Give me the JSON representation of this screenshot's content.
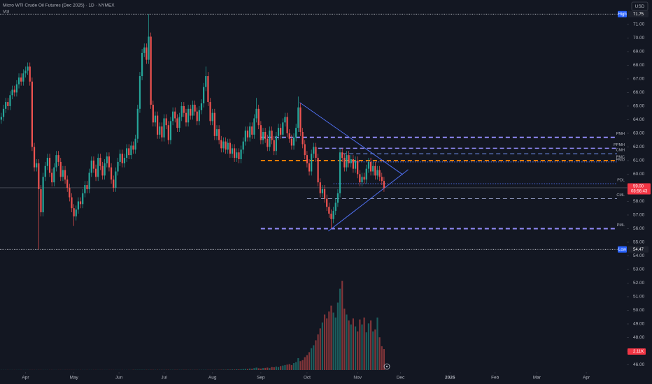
{
  "chart_data": {
    "type": "candlestick",
    "title": "Micro WTI Crude Oil Futures (Dec 2025) · 1D · NYMEX",
    "volume_title": "Vol",
    "currency": "USD",
    "up_color": "#26a69a",
    "down_color": "#ef5350",
    "xlim": [
      -0.6,
      284.4
    ],
    "xticks": [
      {
        "value": 11,
        "label": "Apr"
      },
      {
        "value": 33,
        "label": "May"
      },
      {
        "value": 53.5,
        "label": "Jun"
      },
      {
        "value": 74,
        "label": "Jul"
      },
      {
        "value": 96,
        "label": "Aug"
      },
      {
        "value": 118,
        "label": "Sep"
      },
      {
        "value": 139,
        "label": "Oct"
      },
      {
        "value": 162,
        "label": "Nov"
      },
      {
        "value": 181.5,
        "label": "Dec"
      },
      {
        "value": 204,
        "label": "2026"
      },
      {
        "value": 224.5,
        "label": "Feb"
      },
      {
        "value": 243.5,
        "label": "Mar"
      },
      {
        "value": 266,
        "label": "Apr"
      }
    ],
    "ylim": [
      44.59,
      72.79
    ],
    "yticks": [
      {
        "value": 46,
        "label": "46.00"
      },
      {
        "value": 47,
        "label": "47.00"
      },
      {
        "value": 48,
        "label": "48.00"
      },
      {
        "value": 49,
        "label": "49.00"
      },
      {
        "value": 50,
        "label": "50.00"
      },
      {
        "value": 51,
        "label": "51.00"
      },
      {
        "value": 52,
        "label": "52.00"
      },
      {
        "value": 53,
        "label": "53.00"
      },
      {
        "value": 54,
        "label": "54.00"
      },
      {
        "value": 55,
        "label": "55.00"
      },
      {
        "value": 56,
        "label": "56.00"
      },
      {
        "value": 57,
        "label": "57.00"
      },
      {
        "value": 58,
        "label": "58.00"
      },
      {
        "value": 59,
        "label": "59.00"
      },
      {
        "value": 60,
        "label": "60.00"
      },
      {
        "value": 61,
        "label": "61.00"
      },
      {
        "value": 62,
        "label": "62.00"
      },
      {
        "value": 63,
        "label": "63.00"
      },
      {
        "value": 64,
        "label": "64.00"
      },
      {
        "value": 65,
        "label": "65.00"
      },
      {
        "value": 66,
        "label": "66.00"
      },
      {
        "value": 67,
        "label": "67.00"
      },
      {
        "value": 68,
        "label": "68.00"
      },
      {
        "value": 69,
        "label": "69.00"
      },
      {
        "value": 70,
        "label": "70.00"
      },
      {
        "value": 71,
        "label": "71.00"
      }
    ],
    "high": {
      "label": "High",
      "value": 71.75
    },
    "low": {
      "label": "Low",
      "value": 54.47
    },
    "last_price_label": "59.00",
    "countdown": "08:56:43",
    "last_volume_label": "2.11K",
    "ohlc": [
      [
        64.0,
        64.5,
        63.7,
        64.2
      ],
      [
        64.2,
        65.1,
        63.9,
        64.8
      ],
      [
        64.8,
        65.6,
        64.5,
        65.3
      ],
      [
        65.3,
        65.6,
        64.7,
        65.0
      ],
      [
        65.0,
        66.1,
        64.7,
        65.8
      ],
      [
        65.8,
        66.5,
        65.5,
        66.2
      ],
      [
        66.2,
        66.5,
        65.7,
        66.0
      ],
      [
        66.0,
        66.9,
        65.7,
        66.6
      ],
      [
        66.6,
        67.4,
        66.3,
        67.1
      ],
      [
        67.1,
        67.4,
        66.5,
        66.8
      ],
      [
        66.8,
        67.7,
        66.5,
        67.4
      ],
      [
        67.4,
        67.9,
        67.1,
        67.6
      ],
      [
        67.6,
        68.2,
        67.3,
        67.9
      ],
      [
        67.9,
        68.2,
        66.5,
        66.8
      ],
      [
        66.8,
        67.1,
        61.7,
        62.0
      ],
      [
        62.0,
        62.3,
        60.2,
        60.5
      ],
      [
        60.5,
        61.1,
        60.2,
        60.8
      ],
      [
        60.8,
        61.1,
        54.47,
        58.9
      ],
      [
        58.9,
        59.2,
        56.9,
        57.2
      ],
      [
        57.2,
        60.1,
        56.9,
        59.8
      ],
      [
        59.8,
        60.9,
        59.5,
        60.6
      ],
      [
        60.6,
        61.5,
        60.3,
        61.2
      ],
      [
        61.2,
        61.5,
        59.8,
        60.1
      ],
      [
        60.1,
        60.4,
        59.1,
        59.4
      ],
      [
        59.4,
        60.8,
        59.1,
        60.5
      ],
      [
        60.5,
        61.7,
        60.2,
        61.4
      ],
      [
        61.4,
        61.7,
        60.6,
        60.9
      ],
      [
        60.9,
        61.2,
        59.5,
        59.8
      ],
      [
        59.8,
        60.6,
        59.5,
        60.3
      ],
      [
        60.3,
        60.6,
        59.3,
        59.6
      ],
      [
        59.6,
        59.9,
        58.7,
        59.0
      ],
      [
        59.0,
        59.3,
        58.0,
        58.3
      ],
      [
        58.3,
        58.6,
        57.2,
        57.5
      ],
      [
        57.5,
        57.8,
        56.2,
        56.9
      ],
      [
        56.9,
        57.7,
        56.6,
        57.4
      ],
      [
        57.4,
        58.3,
        57.1,
        58.0
      ],
      [
        58.0,
        58.3,
        57.5,
        57.8
      ],
      [
        57.8,
        58.9,
        57.5,
        58.6
      ],
      [
        58.6,
        59.5,
        58.3,
        59.2
      ],
      [
        59.2,
        59.5,
        58.6,
        58.9
      ],
      [
        58.9,
        60.4,
        58.6,
        60.1
      ],
      [
        60.1,
        61.3,
        59.8,
        61.0
      ],
      [
        61.0,
        61.3,
        60.1,
        60.4
      ],
      [
        60.4,
        60.7,
        59.5,
        59.8
      ],
      [
        59.8,
        61.5,
        59.5,
        61.2
      ],
      [
        61.2,
        61.5,
        60.3,
        60.6
      ],
      [
        60.6,
        60.9,
        59.6,
        59.9
      ],
      [
        59.9,
        61.1,
        59.6,
        60.8
      ],
      [
        60.8,
        61.6,
        60.5,
        61.3
      ],
      [
        61.3,
        61.6,
        60.2,
        60.5
      ],
      [
        60.5,
        60.8,
        59.3,
        59.6
      ],
      [
        59.6,
        59.9,
        58.7,
        59.0
      ],
      [
        59.0,
        60.5,
        58.7,
        60.2
      ],
      [
        60.2,
        61.2,
        59.9,
        60.9
      ],
      [
        60.9,
        61.8,
        60.6,
        61.5
      ],
      [
        61.5,
        61.8,
        60.5,
        60.8
      ],
      [
        60.8,
        61.5,
        60.5,
        61.2
      ],
      [
        61.2,
        62.2,
        60.9,
        61.9
      ],
      [
        61.9,
        62.2,
        61.1,
        61.4
      ],
      [
        61.4,
        62.4,
        61.1,
        62.1
      ],
      [
        62.1,
        62.4,
        61.5,
        61.8
      ],
      [
        61.8,
        62.9,
        61.5,
        62.6
      ],
      [
        62.6,
        65.1,
        62.3,
        64.8
      ],
      [
        64.8,
        67.5,
        64.5,
        67.2
      ],
      [
        67.2,
        69.2,
        66.9,
        68.9
      ],
      [
        68.9,
        69.6,
        68.6,
        69.3
      ],
      [
        69.3,
        69.6,
        68.1,
        68.4
      ],
      [
        68.4,
        71.75,
        68.1,
        70.1
      ],
      [
        70.1,
        70.4,
        64.8,
        65.1
      ],
      [
        65.1,
        65.4,
        63.5,
        63.8
      ],
      [
        63.8,
        64.6,
        63.5,
        64.3
      ],
      [
        64.3,
        64.6,
        62.6,
        62.9
      ],
      [
        62.9,
        63.8,
        62.6,
        63.5
      ],
      [
        63.5,
        63.8,
        62.4,
        62.7
      ],
      [
        62.7,
        64.4,
        62.4,
        64.1
      ],
      [
        64.1,
        64.4,
        63.3,
        63.6
      ],
      [
        63.6,
        63.9,
        62.2,
        62.5
      ],
      [
        62.5,
        64.2,
        62.2,
        63.9
      ],
      [
        63.9,
        64.9,
        63.6,
        64.6
      ],
      [
        64.6,
        64.9,
        63.8,
        64.1
      ],
      [
        64.1,
        64.4,
        63.1,
        63.4
      ],
      [
        63.4,
        64.5,
        63.1,
        64.2
      ],
      [
        64.2,
        65.3,
        63.9,
        65.0
      ],
      [
        65.0,
        65.3,
        64.2,
        64.5
      ],
      [
        64.5,
        64.8,
        63.5,
        63.8
      ],
      [
        63.8,
        65.1,
        63.5,
        64.8
      ],
      [
        64.8,
        65.1,
        64.0,
        64.3
      ],
      [
        64.3,
        65.4,
        64.0,
        65.1
      ],
      [
        65.1,
        65.4,
        64.3,
        64.6
      ],
      [
        64.6,
        64.9,
        63.6,
        63.9
      ],
      [
        63.9,
        65.0,
        63.6,
        64.7
      ],
      [
        64.7,
        65.5,
        64.4,
        65.2
      ],
      [
        65.2,
        66.7,
        64.9,
        66.4
      ],
      [
        66.4,
        67.9,
        66.1,
        67.2
      ],
      [
        67.2,
        67.5,
        65.0,
        65.3
      ],
      [
        65.3,
        65.6,
        63.6,
        63.9
      ],
      [
        63.9,
        64.8,
        63.6,
        64.5
      ],
      [
        64.5,
        64.8,
        62.5,
        62.8
      ],
      [
        62.8,
        63.6,
        62.5,
        63.3
      ],
      [
        63.3,
        63.6,
        62.2,
        62.5
      ],
      [
        62.5,
        62.8,
        61.6,
        61.9
      ],
      [
        61.9,
        62.7,
        61.6,
        62.4
      ],
      [
        62.4,
        62.7,
        61.5,
        61.8
      ],
      [
        61.8,
        62.6,
        61.5,
        62.3
      ],
      [
        62.3,
        62.6,
        61.2,
        61.5
      ],
      [
        61.5,
        62.2,
        61.2,
        61.9
      ],
      [
        61.9,
        62.2,
        60.9,
        61.2
      ],
      [
        61.2,
        61.9,
        60.9,
        61.6
      ],
      [
        61.6,
        61.9,
        60.8,
        61.1
      ],
      [
        61.1,
        62.1,
        60.8,
        61.8
      ],
      [
        61.8,
        62.7,
        61.5,
        62.4
      ],
      [
        62.4,
        63.5,
        62.1,
        63.2
      ],
      [
        63.2,
        63.5,
        62.4,
        62.7
      ],
      [
        62.7,
        63.8,
        62.4,
        63.5
      ],
      [
        63.5,
        63.8,
        62.6,
        62.9
      ],
      [
        62.9,
        64.4,
        62.6,
        64.1
      ],
      [
        64.1,
        65.6,
        63.8,
        64.8
      ],
      [
        64.8,
        65.1,
        63.3,
        63.6
      ],
      [
        63.6,
        63.9,
        62.2,
        62.5
      ],
      [
        62.5,
        63.4,
        62.2,
        63.1
      ],
      [
        63.1,
        63.4,
        62.3,
        62.6
      ],
      [
        62.6,
        62.9,
        61.7,
        62.0
      ],
      [
        62.0,
        63.5,
        61.7,
        63.2
      ],
      [
        63.2,
        63.5,
        62.2,
        62.5
      ],
      [
        62.5,
        62.8,
        61.4,
        61.7
      ],
      [
        61.7,
        63.1,
        61.4,
        62.8
      ],
      [
        62.8,
        63.7,
        62.5,
        63.4
      ],
      [
        63.4,
        63.7,
        62.6,
        62.9
      ],
      [
        62.9,
        64.1,
        62.6,
        63.8
      ],
      [
        63.8,
        64.5,
        63.5,
        64.2
      ],
      [
        64.2,
        64.5,
        62.7,
        63.0
      ],
      [
        63.0,
        63.3,
        62.3,
        62.6
      ],
      [
        62.6,
        62.9,
        61.8,
        62.1
      ],
      [
        62.1,
        63.0,
        61.8,
        62.7
      ],
      [
        62.7,
        63.7,
        62.4,
        63.4
      ],
      [
        63.4,
        65.7,
        63.1,
        64.9
      ],
      [
        64.9,
        65.2,
        62.8,
        63.1
      ],
      [
        63.1,
        63.4,
        61.9,
        62.2
      ],
      [
        62.2,
        62.5,
        61.1,
        61.4
      ],
      [
        61.4,
        61.7,
        60.5,
        60.8
      ],
      [
        60.8,
        61.1,
        59.9,
        60.2
      ],
      [
        60.2,
        61.8,
        59.9,
        61.5
      ],
      [
        61.5,
        62.3,
        61.2,
        62.0
      ],
      [
        62.0,
        62.3,
        60.9,
        61.2
      ],
      [
        61.2,
        61.5,
        59.1,
        59.4
      ],
      [
        59.4,
        59.7,
        58.3,
        58.6
      ],
      [
        58.6,
        59.2,
        58.3,
        58.9
      ],
      [
        58.9,
        59.2,
        57.9,
        58.2
      ],
      [
        58.2,
        58.5,
        57.3,
        57.6
      ],
      [
        57.6,
        57.9,
        56.8,
        57.1
      ],
      [
        57.1,
        57.4,
        56.0,
        56.7
      ],
      [
        56.7,
        57.6,
        56.4,
        57.3
      ],
      [
        57.3,
        58.2,
        57.0,
        57.9
      ],
      [
        57.9,
        58.9,
        57.6,
        58.6
      ],
      [
        58.6,
        61.9,
        58.3,
        61.6
      ],
      [
        61.6,
        61.9,
        60.9,
        61.2
      ],
      [
        61.2,
        61.5,
        60.2,
        60.5
      ],
      [
        60.5,
        61.7,
        60.2,
        61.4
      ],
      [
        61.4,
        61.7,
        60.5,
        60.8
      ],
      [
        60.8,
        61.4,
        60.5,
        61.1
      ],
      [
        61.1,
        61.4,
        60.1,
        60.4
      ],
      [
        60.4,
        61.3,
        60.1,
        61.0
      ],
      [
        61.0,
        61.3,
        59.7,
        60.0
      ],
      [
        60.0,
        60.3,
        59.1,
        59.4
      ],
      [
        59.4,
        60.1,
        59.1,
        59.8
      ],
      [
        59.8,
        60.1,
        59.3,
        59.6
      ],
      [
        59.6,
        60.7,
        59.3,
        60.4
      ],
      [
        60.4,
        61.2,
        60.1,
        60.9
      ],
      [
        60.9,
        61.2,
        59.9,
        60.2
      ],
      [
        60.2,
        60.9,
        59.9,
        60.6
      ],
      [
        60.6,
        60.9,
        59.6,
        59.9
      ],
      [
        59.9,
        60.6,
        59.6,
        60.3
      ],
      [
        60.3,
        60.6,
        59.5,
        59.8
      ],
      [
        59.8,
        60.1,
        59.2,
        59.5
      ],
      [
        59.5,
        59.8,
        58.7,
        59.0
      ]
    ],
    "volume": [
      0.01,
      0.01,
      0.01,
      0.01,
      0.01,
      0.01,
      0.01,
      0.01,
      0.01,
      0.01,
      0.01,
      0.01,
      0.01,
      0.01,
      0.01,
      0.01,
      0.01,
      0.01,
      0.01,
      0.01,
      0.01,
      0.01,
      0.01,
      0.01,
      0.01,
      0.01,
      0.01,
      0.01,
      0.01,
      0.01,
      0.01,
      0.01,
      0.01,
      0.01,
      0.01,
      0.01,
      0.01,
      0.01,
      0.01,
      0.01,
      0.01,
      0.01,
      0.01,
      0.01,
      0.01,
      0.01,
      0.01,
      0.01,
      0.01,
      0.01,
      0.01,
      0.01,
      0.01,
      0.01,
      0.01,
      0.01,
      0.01,
      0.01,
      0.01,
      0.01,
      0.02,
      0.02,
      0.02,
      0.02,
      0.02,
      0.02,
      0.02,
      0.02,
      0.02,
      0.02,
      0.02,
      0.02,
      0.02,
      0.02,
      0.02,
      0.02,
      0.02,
      0.02,
      0.02,
      0.02,
      0.02,
      0.02,
      0.02,
      0.02,
      0.02,
      0.02,
      0.02,
      0.02,
      0.02,
      0.02,
      0.02,
      0.02,
      0.02,
      0.02,
      0.02,
      0.02,
      0.02,
      0.02,
      0.02,
      0.02,
      0.03,
      0.04,
      0.03,
      0.05,
      0.04,
      0.06,
      0.05,
      0.07,
      0.06,
      0.08,
      0.1,
      0.12,
      0.1,
      0.15,
      0.13,
      0.2,
      0.25,
      0.18,
      0.15,
      0.2,
      0.22,
      0.25,
      0.2,
      0.3,
      0.28,
      0.35,
      0.3,
      0.4,
      0.45,
      0.5,
      0.55,
      0.6,
      0.5,
      0.7,
      0.8,
      1.2,
      0.9,
      1.0,
      1.3,
      1.5,
      1.8,
      2.2,
      2.5,
      3.0,
      3.6,
      4.2,
      4.8,
      5.6,
      5.2,
      5.9,
      6.5,
      5.8,
      5.3,
      6.8,
      8.2,
      9.0,
      6.2,
      5.6,
      5.0,
      4.6,
      5.2,
      4.4,
      3.9,
      5.1,
      4.6,
      5.3,
      3.8,
      4.7,
      5.0,
      3.9,
      4.1,
      5.3,
      3.3,
      2.4,
      2.11
    ],
    "levels": [
      {
        "label": "PMH",
        "value": 62.7,
        "start": 118,
        "color": "#8f89f5",
        "style": "dashed",
        "width": 2
      },
      {
        "label": "PPMH",
        "value": 61.9,
        "start": 144,
        "color": "#8f89f5",
        "style": "dashed",
        "width": 1.5
      },
      {
        "label": "CMH",
        "value": 61.5,
        "start": 155,
        "color": "#7b9cff",
        "style": "dashed",
        "width": 1
      },
      {
        "label": "PMC",
        "value": 61.0,
        "start": 118,
        "color": "#f57c00",
        "style": "dashed",
        "width": 2
      },
      {
        "label": "PMO",
        "value": 60.9,
        "start": 158,
        "color": "#4f6ff0",
        "style": "dotted",
        "width": 1
      },
      {
        "label": "PDL",
        "value": 59.3,
        "start": 151,
        "color": "#4f6ff0",
        "style": "dotted",
        "width": 1
      },
      {
        "label": "CML",
        "value": 58.2,
        "start": 139,
        "color": "#8a93b8",
        "style": "dashed",
        "width": 1
      },
      {
        "label": "PML",
        "value": 56.0,
        "start": 118,
        "color": "#8f89f5",
        "style": "dashed",
        "width": 2
      }
    ],
    "trendlines": [
      {
        "x": [
          135.7,
          182.5
        ],
        "y": [
          65.26,
          59.97
        ],
        "color": "#4f6ff0"
      },
      {
        "x": [
          148.7,
          185
        ],
        "y": [
          55.82,
          60.33
        ],
        "color": "#4f6ff0"
      }
    ]
  }
}
